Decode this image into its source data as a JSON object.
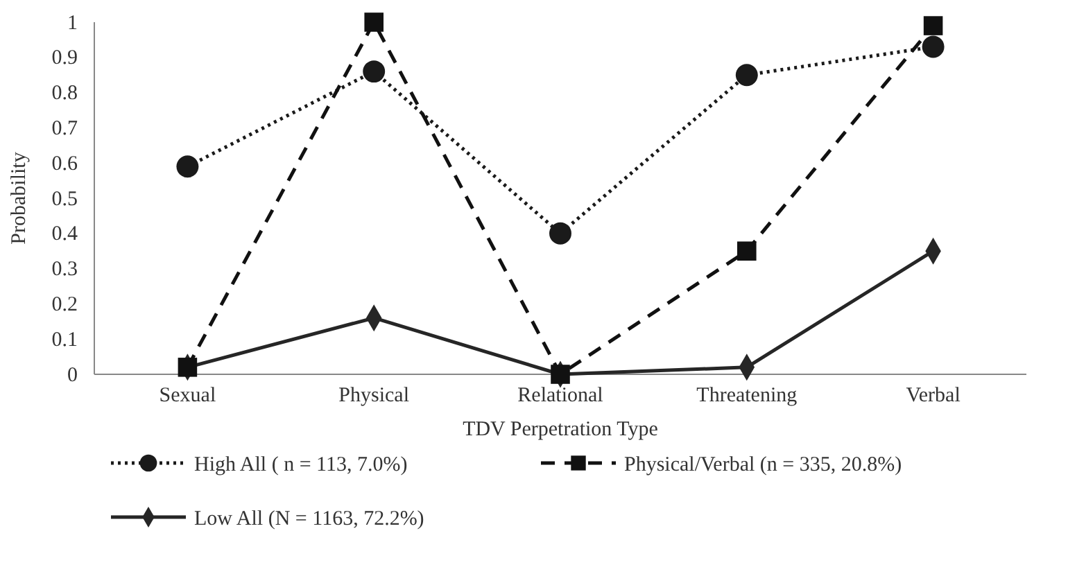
{
  "chart_data": {
    "type": "line",
    "xlabel": "TDV Perpetration Type",
    "ylabel": "Probability",
    "categories": [
      "Sexual",
      "Physical",
      "Relational",
      "Threatening",
      "Verbal"
    ],
    "ylim": [
      0,
      1
    ],
    "yticks": [
      0,
      0.1,
      0.2,
      0.3,
      0.4,
      0.5,
      0.6,
      0.7,
      0.8,
      0.9,
      1
    ],
    "legend": "bottom",
    "grid": false,
    "series": [
      {
        "name": "High All ( n = 113, 7.0%)",
        "color": "#1a1a1a",
        "marker": "circle",
        "line_style": "dotted",
        "values": [
          0.59,
          0.86,
          0.4,
          0.85,
          0.93
        ]
      },
      {
        "name": "Physical/Verbal (n = 335, 20.8%)",
        "color": "#111111",
        "marker": "square",
        "line_style": "dashed",
        "values": [
          0.02,
          1.0,
          0.0,
          0.35,
          0.99
        ]
      },
      {
        "name": "Low All (N = 1163, 72.2%)",
        "color": "#262626",
        "marker": "diamond",
        "line_style": "solid",
        "values": [
          0.02,
          0.16,
          0.0,
          0.02,
          0.35
        ]
      }
    ]
  }
}
